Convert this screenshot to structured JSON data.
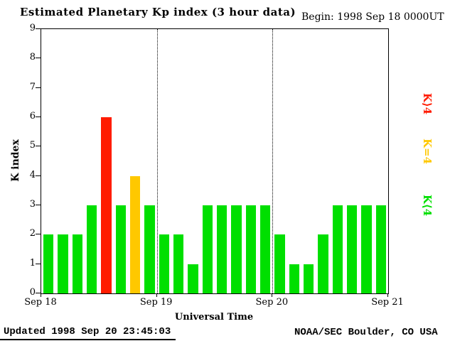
{
  "title": "Estimated Planetary Kp index (3 hour data)",
  "begin_label": "Begin:  1998 Sep 18 0000UT",
  "updated": "Updated 1998 Sep 20 23:45:03",
  "credit": "NOAA/SEC Boulder, CO USA",
  "legend": [
    {
      "label": "K⟩4",
      "color": "#ff1c00"
    },
    {
      "label": "K=4",
      "color": "#ffc800"
    },
    {
      "label": "K⟨4",
      "color": "#00df00"
    }
  ],
  "chart_data": {
    "type": "bar",
    "title": "Estimated Planetary Kp index (3 hour data)",
    "xlabel": "Universal Time",
    "ylabel": "K index",
    "ylim": [
      0,
      9
    ],
    "y_ticks": [
      0,
      1,
      2,
      3,
      4,
      5,
      6,
      7,
      8,
      9
    ],
    "x_tick_labels": [
      "Sep 18",
      "Sep 19",
      "Sep 20",
      "Sep 21"
    ],
    "bar_interval_hours": 3,
    "begin": "1998 Sep 18 0000UT",
    "values": [
      2,
      2,
      2,
      3,
      6,
      3,
      4,
      3,
      2,
      2,
      1,
      3,
      3,
      3,
      3,
      3,
      2,
      1,
      1,
      2,
      3,
      3,
      3,
      3
    ],
    "colors": {
      "low": "#00df00",
      "mid": "#ffc800",
      "high": "#ff1c00"
    },
    "color_rule": "green if K<4, yellow if K=4, red if K>4",
    "grid": "dotted vertical lines at each day boundary",
    "legend_position": "right, rotated"
  }
}
